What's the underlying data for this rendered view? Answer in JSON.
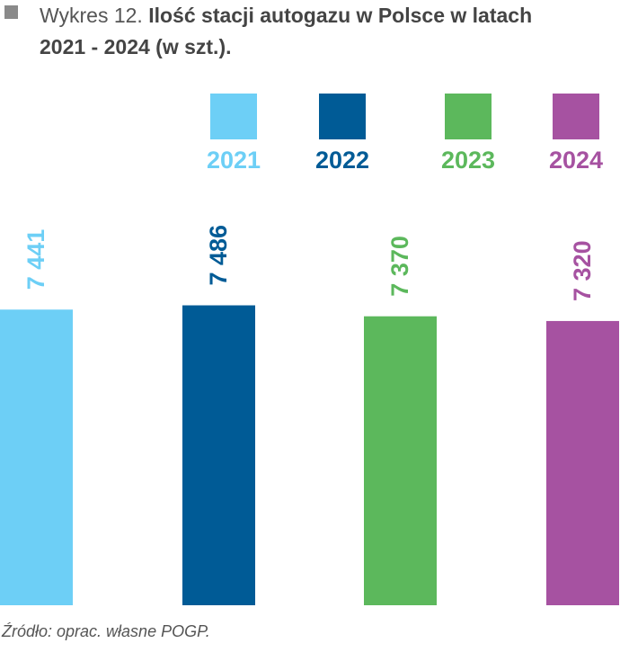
{
  "chart_data": {
    "type": "bar",
    "label": "Wykres 12.",
    "title": "Ilość stacji autogazu w Polsce w latach 2021 - 2024 (w szt.).",
    "categories": [
      "2021",
      "2022",
      "2023",
      "2024"
    ],
    "values": [
      7441,
      7486,
      7370,
      7320
    ],
    "value_labels": [
      "7 441",
      "7 486",
      "7 370",
      "7 320"
    ],
    "colors": [
      "#6dcff6",
      "#005b96",
      "#5cb85c",
      "#a652a1"
    ],
    "source": "Źródło: oprac. własne POGP."
  }
}
